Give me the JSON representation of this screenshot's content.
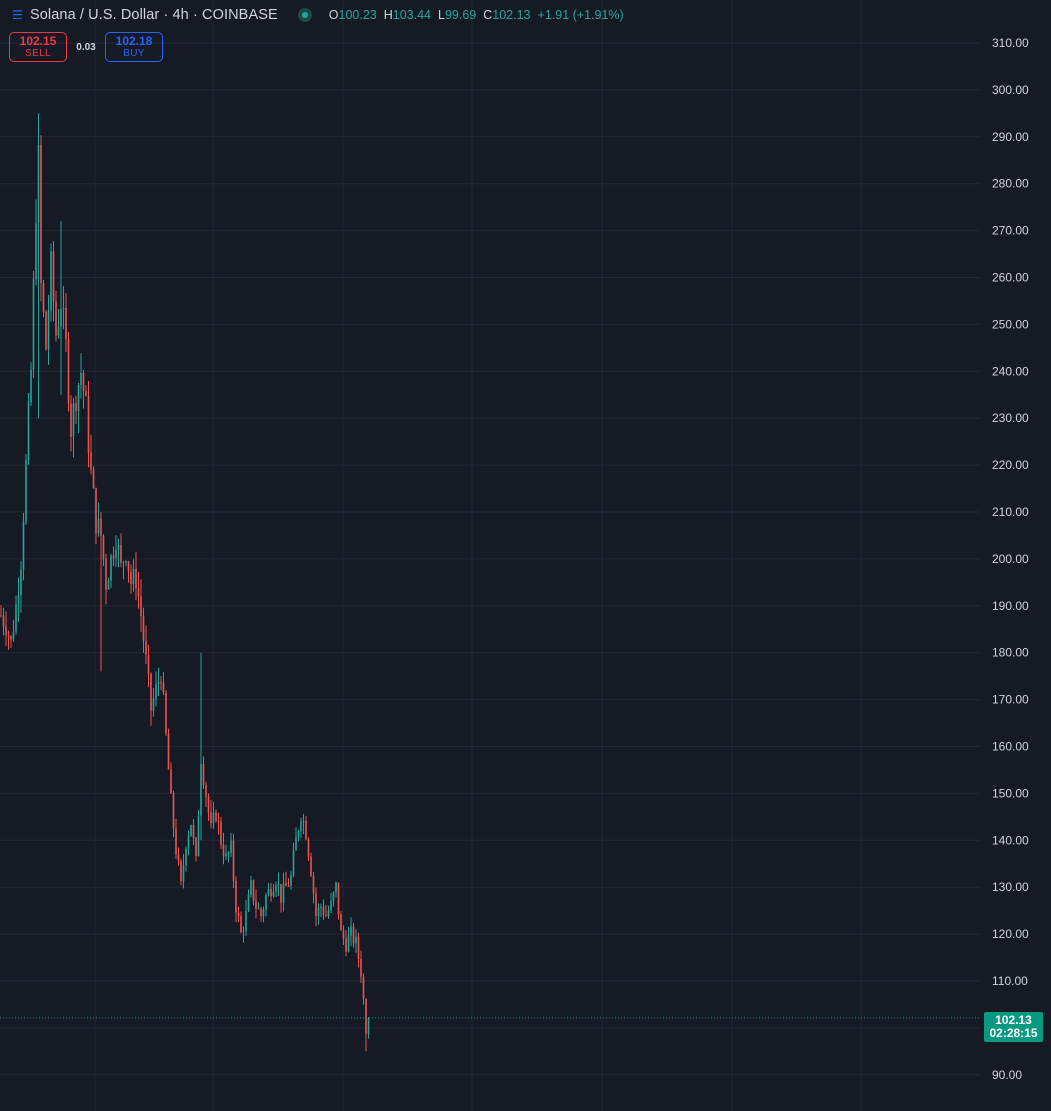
{
  "header": {
    "menu_icon": "hamburger-menu-icon",
    "symbol_title": "Solana / U.S. Dollar · 4h · COINBASE",
    "status_icon": "market-open-dot-icon",
    "ohlc": {
      "o_label": "O",
      "o_value": "100.23",
      "h_label": "H",
      "h_value": "103.44",
      "l_label": "L",
      "l_value": "99.69",
      "c_label": "C",
      "c_value": "102.13",
      "change": "+1.91 (+1.91%)"
    }
  },
  "trade": {
    "sell_price": "102.15",
    "sell_label": "SELL",
    "spread": "0.03",
    "buy_price": "102.18",
    "buy_label": "BUY"
  },
  "current_price": {
    "price": "102.13",
    "countdown": "02:28:15"
  },
  "colors": {
    "background": "#161a25",
    "up": "#26a69a",
    "down": "#ef5350",
    "sell": "#f23645",
    "buy": "#2962ff",
    "price_tag": "#089981"
  },
  "chart_data": {
    "type": "candlestick",
    "y_axis_ticks": [
      "310.00",
      "300.00",
      "290.00",
      "280.00",
      "270.00",
      "260.00",
      "250.00",
      "240.00",
      "230.00",
      "220.00",
      "210.00",
      "200.00",
      "190.00",
      "180.00",
      "170.00",
      "160.00",
      "150.00",
      "140.00",
      "130.00",
      "120.00",
      "110.00",
      "90.00"
    ],
    "ylim": [
      86,
      312
    ],
    "grid": true,
    "current_price": 102.13,
    "trend_close_points": [
      [
        0,
        188
      ],
      [
        2,
        186
      ],
      [
        4,
        182
      ],
      [
        6,
        190
      ],
      [
        8,
        200
      ],
      [
        10,
        220
      ],
      [
        12,
        240
      ],
      [
        14,
        275
      ],
      [
        15,
        285
      ],
      [
        16,
        258
      ],
      [
        18,
        245
      ],
      [
        20,
        262
      ],
      [
        22,
        248
      ],
      [
        24,
        255
      ],
      [
        26,
        245
      ],
      [
        28,
        228
      ],
      [
        30,
        235
      ],
      [
        32,
        240
      ],
      [
        34,
        232
      ],
      [
        36,
        218
      ],
      [
        38,
        208
      ],
      [
        40,
        205
      ],
      [
        42,
        195
      ],
      [
        44,
        200
      ],
      [
        46,
        205
      ],
      [
        48,
        198
      ],
      [
        50,
        202
      ],
      [
        52,
        195
      ],
      [
        54,
        196
      ],
      [
        56,
        188
      ],
      [
        58,
        178
      ],
      [
        60,
        168
      ],
      [
        62,
        172
      ],
      [
        64,
        176
      ],
      [
        66,
        162
      ],
      [
        68,
        148
      ],
      [
        70,
        138
      ],
      [
        72,
        130
      ],
      [
        74,
        140
      ],
      [
        76,
        144
      ],
      [
        78,
        135
      ],
      [
        80,
        158
      ],
      [
        82,
        150
      ],
      [
        84,
        142
      ],
      [
        86,
        146
      ],
      [
        88,
        140
      ],
      [
        90,
        136
      ],
      [
        92,
        138
      ],
      [
        94,
        126
      ],
      [
        96,
        120
      ],
      [
        98,
        124
      ],
      [
        100,
        130
      ],
      [
        102,
        126
      ],
      [
        104,
        124
      ],
      [
        106,
        128
      ],
      [
        108,
        130
      ],
      [
        110,
        132
      ],
      [
        112,
        128
      ],
      [
        114,
        130
      ],
      [
        116,
        132
      ],
      [
        118,
        140
      ],
      [
        120,
        146
      ],
      [
        122,
        142
      ],
      [
        124,
        134
      ],
      [
        126,
        124
      ],
      [
        128,
        126
      ],
      [
        130,
        124
      ],
      [
        132,
        126
      ],
      [
        134,
        130
      ],
      [
        136,
        120
      ],
      [
        138,
        118
      ],
      [
        140,
        120
      ],
      [
        142,
        118
      ],
      [
        144,
        112
      ],
      [
        146,
        100
      ],
      [
        147,
        102.13
      ]
    ],
    "spikes": [
      {
        "i": 15,
        "high": 295,
        "low": 230
      },
      {
        "i": 24,
        "high": 272,
        "low": 235
      },
      {
        "i": 40,
        "high": 210,
        "low": 176
      },
      {
        "i": 80,
        "high": 180,
        "low": 140
      },
      {
        "i": 146,
        "high": 101,
        "low": 95
      }
    ]
  }
}
